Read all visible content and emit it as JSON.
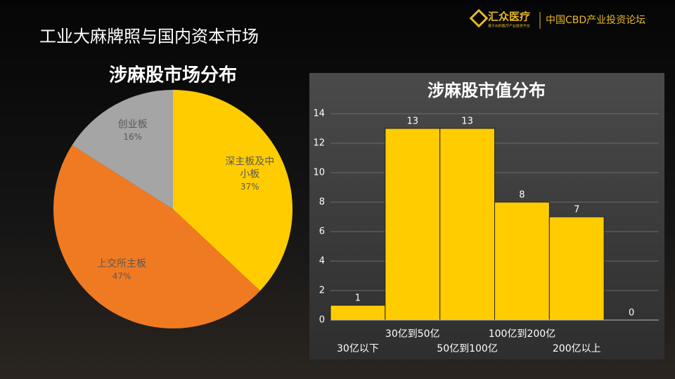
{
  "header": {
    "title": "工业大麻牌照与国内资本市场",
    "logo": "汇众医疗",
    "logo_tagline": "基于AI的医疗产业投资平台",
    "forum": "中国CBD产业投资论坛"
  },
  "chart_data": [
    {
      "type": "pie",
      "title": "涉麻股市场分布",
      "categories": [
        "深主板及中小板",
        "上交所主板",
        "创业板"
      ],
      "values": [
        37,
        47,
        16
      ],
      "value_labels": [
        "37%",
        "47%",
        "16%"
      ],
      "colors": [
        "#ffcc00",
        "#f07a22",
        "#a5a5a5"
      ]
    },
    {
      "type": "bar",
      "title": "涉麻股市值分布",
      "categories": [
        "30亿以下",
        "30亿到50亿",
        "50亿到100亿",
        "100亿到200亿",
        "200亿以上",
        null
      ],
      "values": [
        1,
        13,
        13,
        8,
        7,
        0
      ],
      "color": "#ffcc00",
      "ylim": [
        0,
        14
      ],
      "yticks": [
        0,
        2,
        4,
        6,
        8,
        10,
        12,
        14
      ],
      "grid": true
    }
  ]
}
